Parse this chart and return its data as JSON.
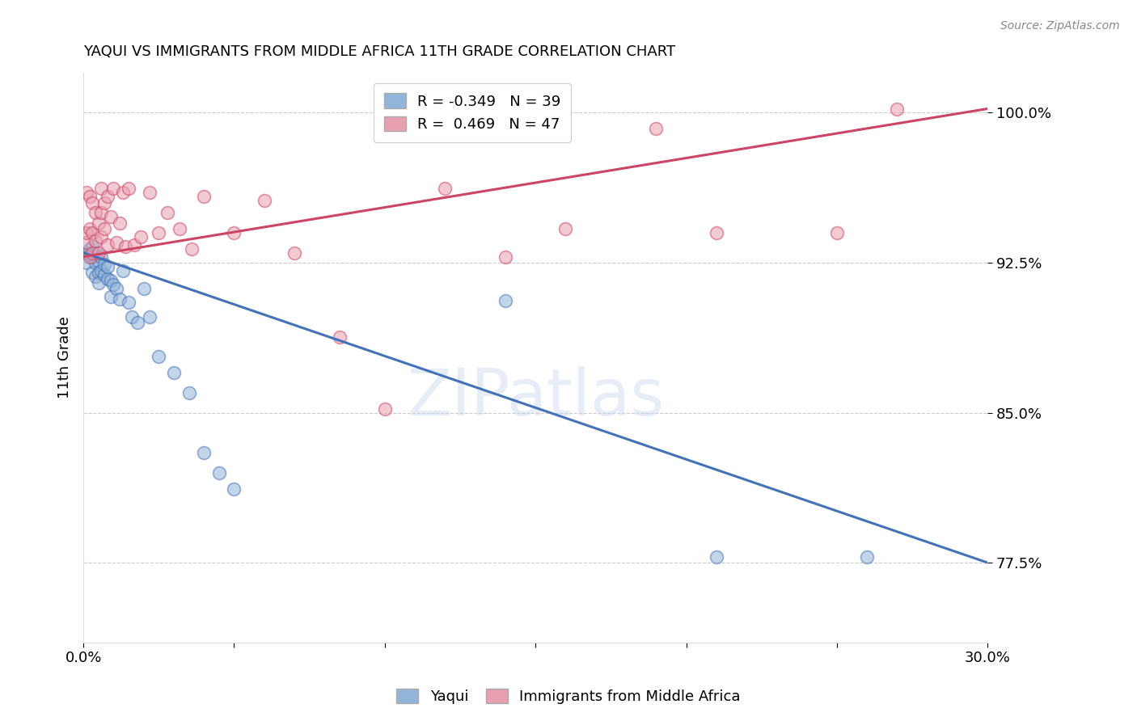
{
  "title": "YAQUI VS IMMIGRANTS FROM MIDDLE AFRICA 11TH GRADE CORRELATION CHART",
  "source": "Source: ZipAtlas.com",
  "ylabel": "11th Grade",
  "xlim": [
    0.0,
    0.3
  ],
  "ylim": [
    0.735,
    1.02
  ],
  "yticks": [
    0.775,
    0.85,
    0.925,
    1.0
  ],
  "ytick_labels": [
    "77.5%",
    "85.0%",
    "92.5%",
    "100.0%"
  ],
  "xticks": [
    0.0,
    0.05,
    0.1,
    0.15,
    0.2,
    0.25,
    0.3
  ],
  "xtick_labels": [
    "0.0%",
    "",
    "",
    "",
    "",
    "",
    "30.0%"
  ],
  "blue_R": -0.349,
  "blue_N": 39,
  "pink_R": 0.469,
  "pink_N": 47,
  "blue_color": "#92b4d8",
  "pink_color": "#e8a0b0",
  "blue_line_color": "#4472b8",
  "pink_line_color": "#cc4466",
  "watermark_color": "#c8d8ee",
  "legend_yaqui": "Yaqui",
  "legend_immigrants": "Immigrants from Middle Africa",
  "blue_line_x": [
    0.0,
    0.3
  ],
  "blue_line_y": [
    0.93,
    0.775
  ],
  "pink_line_x": [
    0.0,
    0.3
  ],
  "pink_line_y": [
    0.928,
    1.002
  ],
  "blue_scatter_x": [
    0.001,
    0.001,
    0.002,
    0.002,
    0.003,
    0.003,
    0.003,
    0.004,
    0.004,
    0.004,
    0.005,
    0.005,
    0.005,
    0.006,
    0.006,
    0.007,
    0.007,
    0.008,
    0.008,
    0.009,
    0.009,
    0.01,
    0.011,
    0.012,
    0.013,
    0.015,
    0.016,
    0.018,
    0.02,
    0.022,
    0.025,
    0.03,
    0.035,
    0.04,
    0.045,
    0.05,
    0.14,
    0.21,
    0.26
  ],
  "blue_scatter_y": [
    0.93,
    0.925,
    0.929,
    0.932,
    0.928,
    0.92,
    0.933,
    0.925,
    0.918,
    0.93,
    0.926,
    0.92,
    0.915,
    0.921,
    0.928,
    0.919,
    0.924,
    0.917,
    0.923,
    0.916,
    0.908,
    0.914,
    0.912,
    0.907,
    0.921,
    0.905,
    0.898,
    0.895,
    0.912,
    0.898,
    0.878,
    0.87,
    0.86,
    0.83,
    0.82,
    0.812,
    0.906,
    0.778,
    0.778
  ],
  "pink_scatter_x": [
    0.001,
    0.001,
    0.001,
    0.002,
    0.002,
    0.002,
    0.003,
    0.003,
    0.003,
    0.004,
    0.004,
    0.005,
    0.005,
    0.006,
    0.006,
    0.006,
    0.007,
    0.007,
    0.008,
    0.008,
    0.009,
    0.01,
    0.011,
    0.012,
    0.013,
    0.014,
    0.015,
    0.017,
    0.019,
    0.022,
    0.025,
    0.028,
    0.032,
    0.036,
    0.04,
    0.05,
    0.06,
    0.07,
    0.085,
    0.1,
    0.12,
    0.14,
    0.16,
    0.19,
    0.21,
    0.25,
    0.27
  ],
  "pink_scatter_y": [
    0.935,
    0.94,
    0.96,
    0.928,
    0.942,
    0.958,
    0.93,
    0.94,
    0.955,
    0.936,
    0.95,
    0.945,
    0.93,
    0.962,
    0.938,
    0.95,
    0.942,
    0.955,
    0.934,
    0.958,
    0.948,
    0.962,
    0.935,
    0.945,
    0.96,
    0.933,
    0.962,
    0.934,
    0.938,
    0.96,
    0.94,
    0.95,
    0.942,
    0.932,
    0.958,
    0.94,
    0.956,
    0.93,
    0.888,
    0.852,
    0.962,
    0.928,
    0.942,
    0.992,
    0.94,
    0.94,
    1.002
  ]
}
